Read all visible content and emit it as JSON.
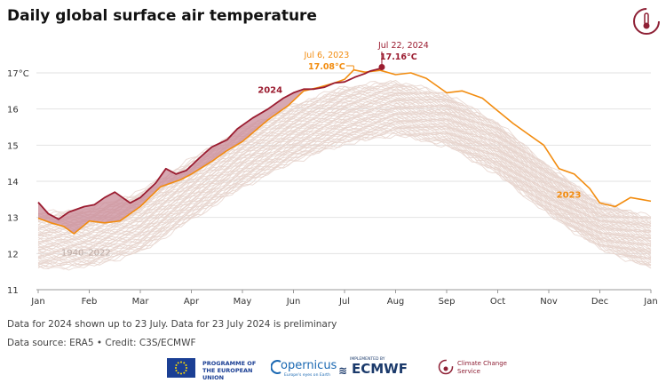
{
  "title": "Daily global surface air temperature",
  "notes": {
    "line1": "Data for 2024 shown up to 23 July. Data for 23 July 2024 is preliminary",
    "line2": "Data source: ERA5 • Credit: C3S/ECMWF"
  },
  "footer": {
    "eu": "PROGRAMME OF THE EUROPEAN UNION",
    "copernicus": "opernicus",
    "copernicus_sub": "Europe's eyes on Earth",
    "ecmwf_small": "IMPLEMENTED BY",
    "ecmwf": "ECMWF",
    "c3s": "Climate Change Service"
  },
  "colors": {
    "c2024": "#9b1c30",
    "c2023": "#f28c0f",
    "hist": "#e6d4cd",
    "fill2024": "#c98b98"
  },
  "chart_data": {
    "type": "line",
    "title": "Daily global surface air temperature",
    "ylabel": "°C",
    "xlabel": "",
    "ylim": [
      11,
      17
    ],
    "xlim": [
      0,
      12
    ],
    "month_ticks": [
      "Jan",
      "Feb",
      "Mar",
      "Apr",
      "May",
      "Jun",
      "Jul",
      "Aug",
      "Sep",
      "Oct",
      "Nov",
      "Dec",
      "Jan"
    ],
    "y_ticks": [
      "11",
      "12",
      "13",
      "14",
      "15",
      "16",
      "17°C"
    ],
    "grid": true,
    "series": [
      {
        "name": "1940–2022",
        "label": "1940–2022",
        "band_low": [
          [
            0,
            11.6
          ],
          [
            1,
            11.65
          ],
          [
            2,
            12.05
          ],
          [
            3,
            12.95
          ],
          [
            4,
            13.85
          ],
          [
            5,
            14.55
          ],
          [
            6,
            15.05
          ],
          [
            7,
            15.3
          ],
          [
            8,
            15.0
          ],
          [
            9,
            14.2
          ],
          [
            10,
            13.1
          ],
          [
            11,
            12.15
          ],
          [
            12,
            11.6
          ]
        ],
        "band_high": [
          [
            0,
            13.1
          ],
          [
            1,
            13.2
          ],
          [
            2,
            13.7
          ],
          [
            3,
            14.6
          ],
          [
            4,
            15.45
          ],
          [
            5,
            16.1
          ],
          [
            6,
            16.6
          ],
          [
            7,
            16.75
          ],
          [
            8,
            16.4
          ],
          [
            9,
            15.6
          ],
          [
            10,
            14.4
          ],
          [
            11,
            13.4
          ],
          [
            12,
            13.0
          ]
        ]
      },
      {
        "name": "2023",
        "label": "2023",
        "points": [
          [
            0,
            12.98
          ],
          [
            0.25,
            12.85
          ],
          [
            0.5,
            12.75
          ],
          [
            0.7,
            12.55
          ],
          [
            1.0,
            12.9
          ],
          [
            1.3,
            12.85
          ],
          [
            1.6,
            12.9
          ],
          [
            2.0,
            13.3
          ],
          [
            2.4,
            13.85
          ],
          [
            2.8,
            14.05
          ],
          [
            3.0,
            14.2
          ],
          [
            3.4,
            14.55
          ],
          [
            3.7,
            14.85
          ],
          [
            4.0,
            15.1
          ],
          [
            4.5,
            15.7
          ],
          [
            4.9,
            16.1
          ],
          [
            5.2,
            16.5
          ],
          [
            5.5,
            16.6
          ],
          [
            5.8,
            16.72
          ],
          [
            6.0,
            16.82
          ],
          [
            6.18,
            17.08
          ],
          [
            6.4,
            17.02
          ],
          [
            6.7,
            17.07
          ],
          [
            7.0,
            16.95
          ],
          [
            7.3,
            17.0
          ],
          [
            7.6,
            16.85
          ],
          [
            8.0,
            16.45
          ],
          [
            8.3,
            16.5
          ],
          [
            8.7,
            16.3
          ],
          [
            9.0,
            15.95
          ],
          [
            9.3,
            15.6
          ],
          [
            9.6,
            15.3
          ],
          [
            9.9,
            15.0
          ],
          [
            10.2,
            14.35
          ],
          [
            10.5,
            14.2
          ],
          [
            10.8,
            13.8
          ],
          [
            11.0,
            13.4
          ],
          [
            11.3,
            13.3
          ],
          [
            11.6,
            13.55
          ],
          [
            11.8,
            13.5
          ],
          [
            12.0,
            13.45
          ]
        ]
      },
      {
        "name": "2024",
        "label": "2024",
        "points": [
          [
            0,
            13.42
          ],
          [
            0.2,
            13.1
          ],
          [
            0.4,
            12.95
          ],
          [
            0.6,
            13.15
          ],
          [
            0.9,
            13.3
          ],
          [
            1.1,
            13.35
          ],
          [
            1.3,
            13.55
          ],
          [
            1.5,
            13.7
          ],
          [
            1.8,
            13.4
          ],
          [
            2.0,
            13.55
          ],
          [
            2.3,
            13.95
          ],
          [
            2.5,
            14.35
          ],
          [
            2.7,
            14.2
          ],
          [
            2.9,
            14.3
          ],
          [
            3.2,
            14.7
          ],
          [
            3.4,
            14.95
          ],
          [
            3.7,
            15.15
          ],
          [
            3.9,
            15.45
          ],
          [
            4.2,
            15.75
          ],
          [
            4.5,
            16.0
          ],
          [
            4.8,
            16.3
          ],
          [
            5.0,
            16.45
          ],
          [
            5.2,
            16.55
          ],
          [
            5.4,
            16.55
          ],
          [
            5.6,
            16.6
          ],
          [
            5.8,
            16.72
          ],
          [
            6.0,
            16.75
          ],
          [
            6.2,
            16.88
          ],
          [
            6.4,
            16.98
          ],
          [
            6.5,
            17.05
          ],
          [
            6.7,
            17.12
          ],
          [
            6.73,
            17.16
          ]
        ]
      }
    ],
    "annotations": [
      {
        "date": "Jul 6, 2023",
        "value": "17.08°C"
      },
      {
        "date": "Jul 22, 2024",
        "value": "17.16°C"
      }
    ]
  }
}
